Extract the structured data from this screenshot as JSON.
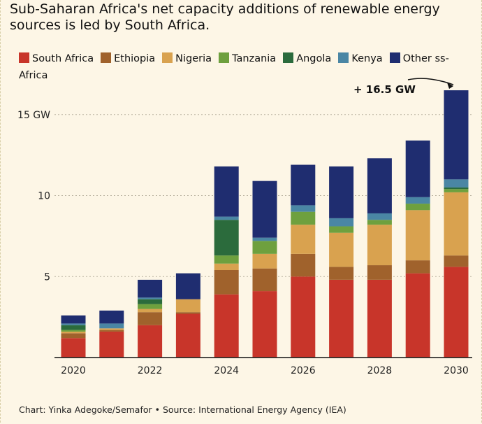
{
  "title": "Sub-Saharan Africa's net capacity additions of renewable energy sources is led by South Africa.",
  "source": "Chart: Yinka Adegoke/Semafor • Source: International Energy Agency (IEA)",
  "chart_data": {
    "type": "bar",
    "stacked": true,
    "x": [
      2020,
      2021,
      2022,
      2023,
      2024,
      2025,
      2026,
      2027,
      2028,
      2029,
      2030
    ],
    "x_tick_labels": [
      "2020",
      "2022",
      "2024",
      "2026",
      "2028",
      "2030"
    ],
    "y_ticks": [
      {
        "value": 5,
        "label": "5"
      },
      {
        "value": 10,
        "label": "10"
      },
      {
        "value": 15,
        "label": "15 GW"
      }
    ],
    "ylim": [
      0,
      16.5
    ],
    "grid": true,
    "legend_position": "top",
    "annotation": {
      "text": "+ 16.5 GW",
      "target_year": 2030
    },
    "series": [
      {
        "name": "South Africa",
        "color": "#c8352a",
        "values": [
          1.2,
          1.6,
          2.0,
          2.7,
          3.9,
          4.1,
          5.0,
          4.8,
          4.8,
          5.2,
          5.6
        ]
      },
      {
        "name": "Ethiopia",
        "color": "#a0622c",
        "values": [
          0.3,
          0.1,
          0.8,
          0.1,
          1.5,
          1.4,
          1.4,
          0.8,
          0.9,
          0.8,
          0.7
        ]
      },
      {
        "name": "Nigeria",
        "color": "#d9a24f",
        "values": [
          0.1,
          0.1,
          0.2,
          0.8,
          0.4,
          0.9,
          1.8,
          2.1,
          2.5,
          3.1,
          3.9
        ]
      },
      {
        "name": "Tanzania",
        "color": "#6ea03e",
        "values": [
          0.1,
          0.0,
          0.3,
          0.0,
          0.5,
          0.8,
          0.8,
          0.4,
          0.3,
          0.4,
          0.2
        ]
      },
      {
        "name": "Angola",
        "color": "#2b6b3c",
        "values": [
          0.3,
          0.0,
          0.3,
          0.0,
          2.2,
          0.0,
          0.0,
          0.0,
          0.0,
          0.0,
          0.1
        ]
      },
      {
        "name": "Kenya",
        "color": "#4a86a4",
        "values": [
          0.1,
          0.3,
          0.1,
          0.0,
          0.2,
          0.2,
          0.4,
          0.5,
          0.4,
          0.4,
          0.5
        ]
      },
      {
        "name": "Other ss-Africa",
        "color": "#1f2d70",
        "values": [
          0.5,
          0.8,
          1.1,
          1.6,
          3.1,
          3.5,
          2.5,
          3.2,
          3.4,
          3.5,
          5.5
        ]
      }
    ]
  }
}
